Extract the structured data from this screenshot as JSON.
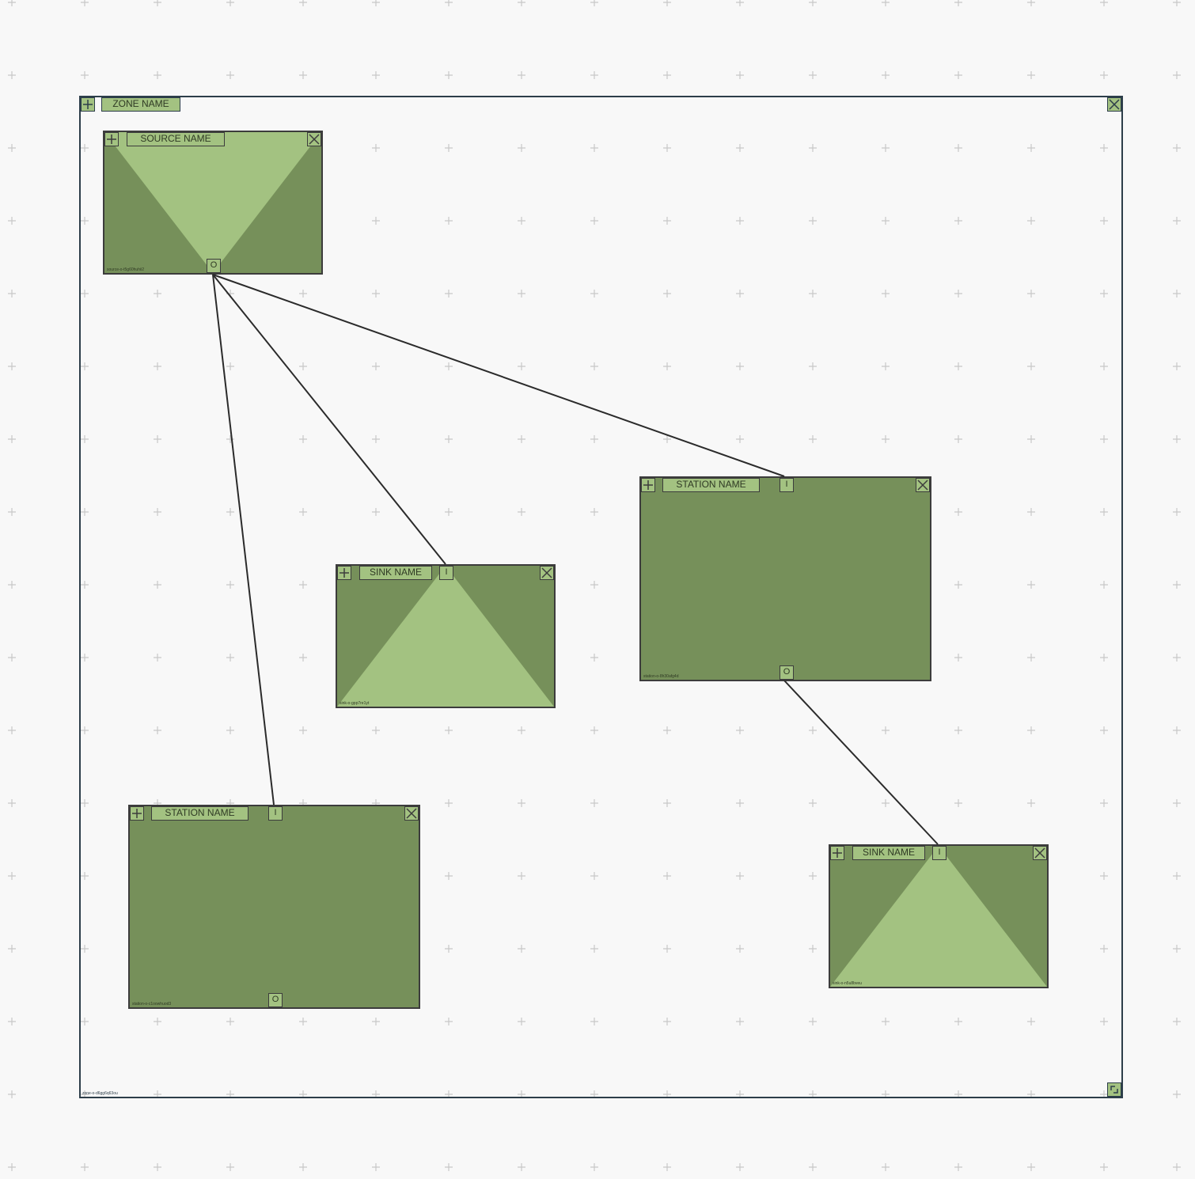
{
  "colors": {
    "background": "#f8f8f8",
    "grid_plus": "#c8c8c8",
    "node_dark": "#76905a",
    "node_light": "#a3c281",
    "border": "#3c3c3c",
    "zone_border": "#2d3e4a",
    "edge": "#2b2b2b"
  },
  "zone": {
    "name": "ZONE NAME",
    "id": "zone-o-d6gg6q63ou",
    "add_icon": "plus-icon",
    "close_icon": "close-icon",
    "resize_icon": "resize-icon"
  },
  "nodes": {
    "source": {
      "type": "source",
      "name": "SOURCE NAME",
      "id": "source-o-t5g60huhii2",
      "out_port": "O"
    },
    "sink1": {
      "type": "sink",
      "name": "SINK NAME",
      "id": "sink-o-gpp7re1yt",
      "in_port": "I"
    },
    "station1": {
      "type": "station",
      "name": "STATION NAME",
      "id": "station-o-8h30afg4d",
      "in_port": "I",
      "out_port": "O"
    },
    "station2": {
      "type": "station",
      "name": "STATION NAME",
      "id": "station-o-c1oowhuod3",
      "in_port": "I",
      "out_port": "O"
    },
    "sink2": {
      "type": "sink",
      "name": "SINK NAME",
      "id": "sink-o-n5u8bveu",
      "in_port": "I"
    }
  },
  "edges": [
    {
      "from": "source",
      "to": "station1"
    },
    {
      "from": "source",
      "to": "sink1"
    },
    {
      "from": "source",
      "to": "station2"
    },
    {
      "from": "station1",
      "to": "sink2"
    }
  ]
}
